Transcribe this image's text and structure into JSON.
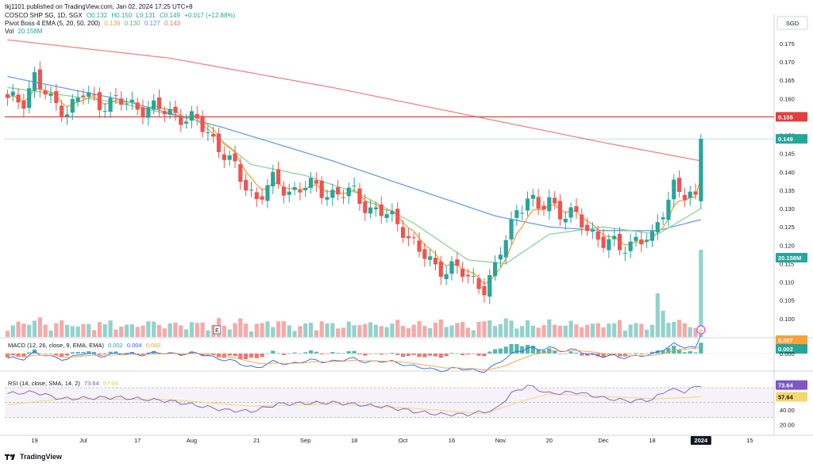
{
  "header": {
    "published_by": "tkj1101 published on TradingView.com, Jan 02, 2024 17:25 UTC+8",
    "symbol": "COSCO SHP SG, 1D, SGX",
    "open": "O0.132",
    "high": "H0.150",
    "low": "L0.131",
    "close": "C0.149",
    "change": "+0.017 (+12.88%)",
    "ema_label": "Pivot Boss 4 EMA (5, 20, 50, 200)",
    "ema_values": [
      "0.138",
      "0.130",
      "0.127",
      "0.143"
    ],
    "vol_label": "Vol",
    "vol_value": "20.158M"
  },
  "currency": "SGD",
  "macd": {
    "label": "MACD (12, 26, close, 9, EMA, EMA)",
    "values": [
      "0.002",
      "0.004",
      "0.002"
    ],
    "badge_hist": "0.002",
    "badge_signal": "0.007",
    "zero_label": "0.000"
  },
  "rsi": {
    "label": "RSI (14, close, SMA, 14, 2)",
    "value": "73.64",
    "sma": "57.64",
    "tick_labels": [
      "60.00",
      "40.00",
      "20.00"
    ]
  },
  "price_badges": {
    "resistance": "0.155",
    "last": "0.149",
    "volume": "20.158M"
  },
  "colors": {
    "up": "#26a69a",
    "down": "#ef5350",
    "ema5": "#f7a13b",
    "ema20": "#8fd39c",
    "ema50": "#6b9fe3",
    "ema200": "#f08585",
    "resistance": "#e33e3e",
    "rsi": "#7e57c2",
    "rsi_sma": "#f5d76e"
  },
  "footer": {
    "brand": "TradingView"
  },
  "chart_data": {
    "type": "candlestick",
    "y_ticks": [
      "0.175",
      "0.170",
      "0.165",
      "0.160",
      "0.155",
      "0.150",
      "0.145",
      "0.140",
      "0.135",
      "0.130",
      "0.125",
      "0.120",
      "0.115",
      "0.110",
      "0.105",
      "0.100"
    ],
    "ylim": [
      0.095,
      0.178
    ],
    "x_ticks": [
      "19",
      "Jul",
      "17",
      "Aug",
      "21",
      "Sep",
      "18",
      "Oct",
      "16",
      "Nov",
      "20",
      "Dec",
      "18",
      "2024",
      "15"
    ],
    "x_tick_index": [
      5,
      14,
      24,
      34,
      46,
      55,
      64,
      73,
      82,
      91,
      100,
      110,
      119,
      128,
      137
    ],
    "bar_count": 142,
    "last_bar_index": 128,
    "resistance_level": 0.155,
    "last_price": 0.149,
    "ohlc_anchors": [
      [
        0,
        0.159
      ],
      [
        3,
        0.16
      ],
      [
        5,
        0.166
      ],
      [
        6,
        0.163
      ],
      [
        8,
        0.159
      ],
      [
        11,
        0.157
      ],
      [
        14,
        0.161
      ],
      [
        17,
        0.159
      ],
      [
        20,
        0.159
      ],
      [
        24,
        0.158
      ],
      [
        27,
        0.157
      ],
      [
        31,
        0.156
      ],
      [
        34,
        0.154
      ],
      [
        37,
        0.151
      ],
      [
        40,
        0.145
      ],
      [
        43,
        0.138
      ],
      [
        46,
        0.133
      ],
      [
        49,
        0.137
      ],
      [
        52,
        0.135
      ],
      [
        55,
        0.136
      ],
      [
        58,
        0.135
      ],
      [
        61,
        0.134
      ],
      [
        64,
        0.134
      ],
      [
        67,
        0.13
      ],
      [
        70,
        0.128
      ],
      [
        73,
        0.125
      ],
      [
        76,
        0.118
      ],
      [
        79,
        0.114
      ],
      [
        82,
        0.114
      ],
      [
        85,
        0.111
      ],
      [
        88,
        0.109
      ],
      [
        90,
        0.113
      ],
      [
        92,
        0.122
      ],
      [
        94,
        0.13
      ],
      [
        96,
        0.133
      ],
      [
        98,
        0.129
      ],
      [
        100,
        0.133
      ],
      [
        102,
        0.129
      ],
      [
        104,
        0.128
      ],
      [
        107,
        0.125
      ],
      [
        110,
        0.121
      ],
      [
        113,
        0.119
      ],
      [
        116,
        0.122
      ],
      [
        119,
        0.121
      ],
      [
        121,
        0.13
      ],
      [
        123,
        0.137
      ],
      [
        125,
        0.133
      ],
      [
        127,
        0.132
      ],
      [
        128,
        0.149
      ]
    ],
    "ema200_anchors": [
      [
        0,
        0.176
      ],
      [
        30,
        0.171
      ],
      [
        60,
        0.163
      ],
      [
        90,
        0.154
      ],
      [
        110,
        0.148
      ],
      [
        128,
        0.143
      ]
    ],
    "ema50_anchors": [
      [
        0,
        0.166
      ],
      [
        20,
        0.16
      ],
      [
        40,
        0.152
      ],
      [
        60,
        0.143
      ],
      [
        80,
        0.133
      ],
      [
        90,
        0.128
      ],
      [
        100,
        0.125
      ],
      [
        110,
        0.124
      ],
      [
        120,
        0.124
      ],
      [
        128,
        0.127
      ]
    ],
    "ema20_anchors": [
      [
        0,
        0.163
      ],
      [
        20,
        0.159
      ],
      [
        35,
        0.154
      ],
      [
        45,
        0.142
      ],
      [
        55,
        0.139
      ],
      [
        65,
        0.134
      ],
      [
        75,
        0.126
      ],
      [
        85,
        0.116
      ],
      [
        92,
        0.115
      ],
      [
        100,
        0.123
      ],
      [
        110,
        0.125
      ],
      [
        120,
        0.123
      ],
      [
        128,
        0.13
      ]
    ],
    "volume_peak": 20.158,
    "macd_range": [
      -0.006,
      0.008
    ],
    "rsi_range": [
      10,
      85
    ],
    "rsi_anchors": [
      [
        0,
        62
      ],
      [
        5,
        64
      ],
      [
        10,
        55
      ],
      [
        20,
        57
      ],
      [
        30,
        52
      ],
      [
        40,
        40
      ],
      [
        45,
        38
      ],
      [
        50,
        48
      ],
      [
        60,
        50
      ],
      [
        70,
        44
      ],
      [
        75,
        38
      ],
      [
        80,
        34
      ],
      [
        85,
        34
      ],
      [
        90,
        40
      ],
      [
        93,
        62
      ],
      [
        96,
        73
      ],
      [
        100,
        62
      ],
      [
        105,
        64
      ],
      [
        110,
        56
      ],
      [
        115,
        52
      ],
      [
        119,
        54
      ],
      [
        122,
        68
      ],
      [
        125,
        65
      ],
      [
        128,
        73.64
      ]
    ],
    "rsi_sma_anchors": [
      [
        0,
        47
      ],
      [
        10,
        55
      ],
      [
        30,
        54
      ],
      [
        45,
        45
      ],
      [
        60,
        48
      ],
      [
        75,
        42
      ],
      [
        88,
        35
      ],
      [
        95,
        52
      ],
      [
        100,
        62
      ],
      [
        110,
        58
      ],
      [
        120,
        55
      ],
      [
        128,
        57.64
      ]
    ]
  }
}
